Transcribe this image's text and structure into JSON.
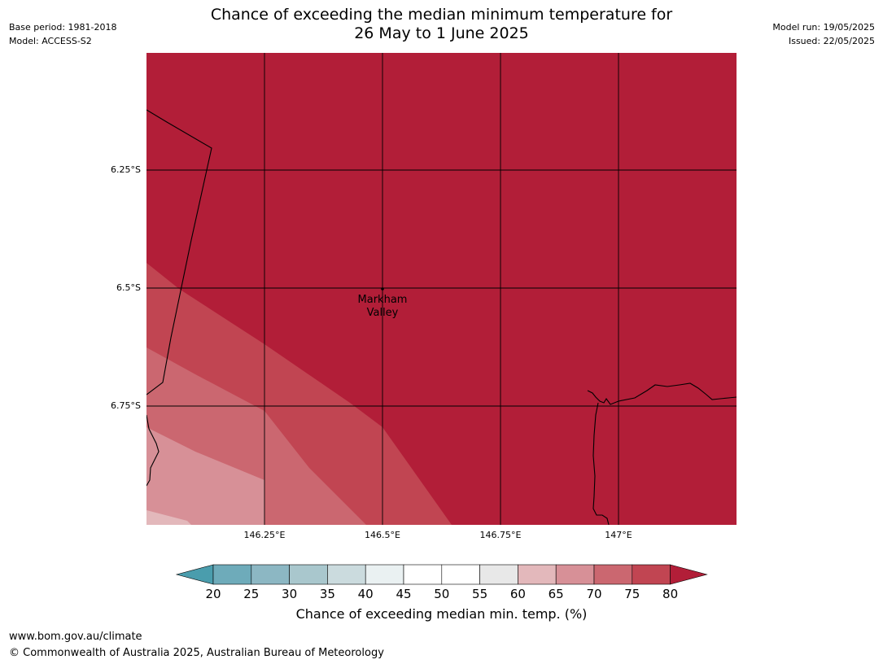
{
  "header": {
    "base_period": "Base period: 1981-2018",
    "model": "Model: ACCESS-S2",
    "model_run": "Model run: 19/05/2025",
    "issued": "Issued: 22/05/2025",
    "title_line1": "Chance of exceeding the median minimum temperature for",
    "title_line2": "26 May to 1 June 2025"
  },
  "map": {
    "lat_labels": [
      "6.25°S",
      "6.5°S",
      "6.75°S"
    ],
    "lon_labels": [
      "146.25°E",
      "146.5°E",
      "146.75°E",
      "147°E"
    ],
    "place": {
      "name_line1": "Markham",
      "name_line2": "Valley"
    },
    "colors": {
      "c80": "#b21e38",
      "c75": "#c14552",
      "c70": "#cb6770",
      "c65": "#d79097",
      "c60": "#e3b8bb",
      "grid": "#000000",
      "coast": "#000000"
    }
  },
  "colorbar": {
    "ticks": [
      "20",
      "25",
      "30",
      "35",
      "40",
      "45",
      "50",
      "55",
      "60",
      "65",
      "70",
      "75",
      "80"
    ],
    "colors": [
      "#4a9dad",
      "#6eabba",
      "#8cb7c3",
      "#a9c7cd",
      "#cbdbde",
      "#eaf1f2",
      "#ffffff",
      "#ffffff",
      "#e8e8e8",
      "#e3b8bb",
      "#d79097",
      "#cb6770",
      "#c14552",
      "#b21e38"
    ],
    "label": "Chance of exceeding median min. temp. (%)"
  },
  "footer": {
    "url": "www.bom.gov.au/climate",
    "copyright": "© Commonwealth of Australia 2025, Australian Bureau of Meteorology"
  }
}
